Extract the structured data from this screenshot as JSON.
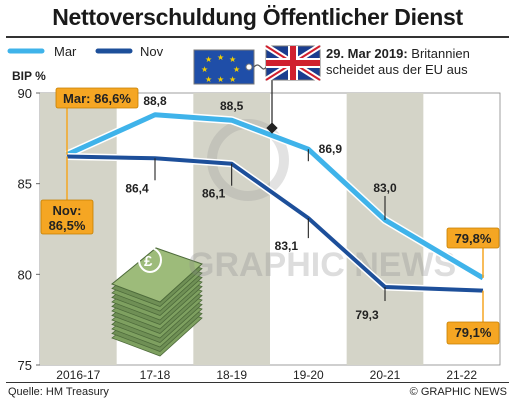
{
  "chart_data": {
    "type": "line",
    "title": "Nettoverschuldung Öffentlicher Dienst",
    "ylabel": "BIP %",
    "categories": [
      "2016-17",
      "17-18",
      "18-19",
      "19-20",
      "20-21",
      "21-22"
    ],
    "ylim": [
      75,
      90
    ],
    "yticks": [
      "75",
      "80",
      "85",
      "90"
    ],
    "series": [
      {
        "name": "Mar",
        "values": [
          86.6,
          88.8,
          88.5,
          86.9,
          83.0,
          79.8
        ],
        "labels": [
          "Mar: 86,6%",
          "88,8",
          "88,5",
          "86,9",
          "83,0",
          "79,8%"
        ]
      },
      {
        "name": "Nov",
        "values": [
          86.5,
          86.4,
          86.1,
          83.1,
          79.3,
          79.1
        ],
        "labels": [
          "Nov: 86,5%",
          "86,4",
          "86,1",
          "83,1",
          "79,3",
          "79,1%"
        ]
      }
    ],
    "grid": false,
    "legend": "top-left",
    "colors": {
      "Mar": "#3fb3ea",
      "Nov": "#1d4f9a",
      "highlight": "#f5a623",
      "band": "#d4d4c8"
    }
  },
  "annotation": {
    "date": "29. Mar 2019:",
    "line1": " Britannien",
    "line2": "scheidet aus der EU aus"
  },
  "watermark": "GRAPHIC NEWS",
  "source": "Quelle: HM Treasury",
  "credit": "© GRAPHIC NEWS"
}
